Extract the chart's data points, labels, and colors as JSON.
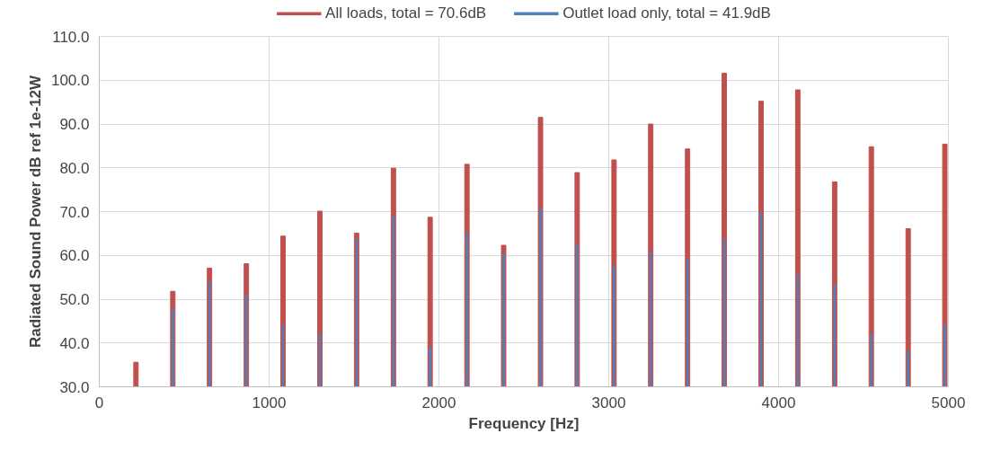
{
  "chart_data": {
    "type": "bar",
    "xlabel": "Frequency [Hz]",
    "ylabel": "Radiated Sound Power dB ref 1e-12W",
    "x": [
      216,
      433,
      649,
      866,
      1082,
      1299,
      1515,
      1732,
      1948,
      2165,
      2381,
      2598,
      2814,
      3031,
      3247,
      3464,
      3680,
      3897,
      4113,
      4330,
      4546,
      4763,
      4979
    ],
    "series": [
      {
        "name": "All loads, total = 70.6dB",
        "color": "#c0504d",
        "values": [
          35.6,
          51.8,
          57.1,
          58.1,
          64.4,
          70.1,
          65.1,
          79.9,
          68.7,
          80.8,
          62.3,
          91.5,
          78.9,
          81.8,
          90.0,
          84.3,
          101.6,
          95.2,
          97.8,
          76.8,
          84.8,
          66.1,
          85.4
        ]
      },
      {
        "name": "Outlet load only, total = 41.9dB",
        "color": "#4f81bd",
        "values": [
          null,
          48.0,
          54.1,
          51.0,
          44.0,
          42.3,
          64.0,
          68.9,
          39.0,
          65.3,
          60.4,
          70.8,
          62.5,
          57.7,
          60.9,
          59.0,
          63.7,
          69.9,
          55.6,
          53.3,
          42.1,
          38.2,
          44.1
        ]
      }
    ],
    "xlim": [
      0,
      5000
    ],
    "xticks": [
      0,
      1000,
      2000,
      3000,
      4000,
      5000
    ],
    "ylim": [
      30,
      110
    ],
    "yticks": [
      {
        "value": 30,
        "label": "30.0"
      },
      {
        "value": 40,
        "label": "40.0"
      },
      {
        "value": 50,
        "label": "50.0"
      },
      {
        "value": 60,
        "label": "60.0"
      },
      {
        "value": 70,
        "label": "70.0"
      },
      {
        "value": 80,
        "label": "80.0"
      },
      {
        "value": 90,
        "label": "90.0"
      },
      {
        "value": 100,
        "label": "100.0"
      },
      {
        "value": 110,
        "label": "110.0"
      }
    ],
    "grid": true,
    "legend": "top"
  }
}
